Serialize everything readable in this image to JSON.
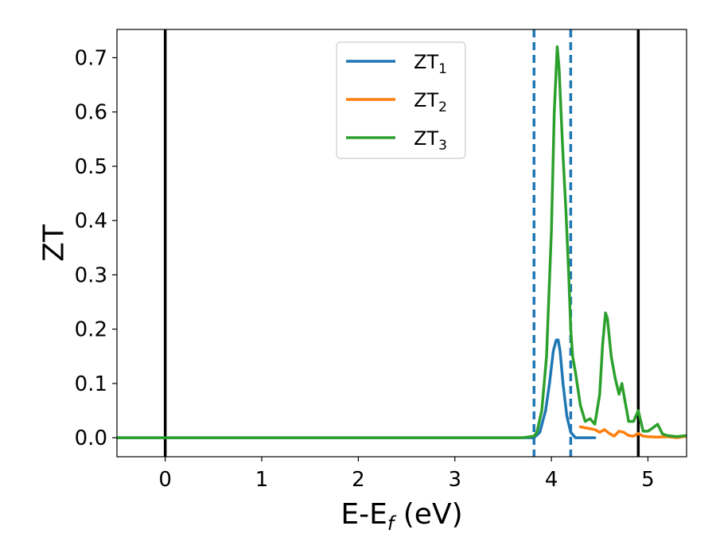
{
  "chart_data": {
    "type": "line",
    "xlabel": "E-E",
    "xlabel_sub": "f",
    "xlabel_unit": " (eV)",
    "ylabel": "ZT",
    "xlim": [
      -0.5,
      5.4
    ],
    "ylim": [
      -0.035,
      0.752
    ],
    "xticks": [
      0,
      1,
      2,
      3,
      4,
      5
    ],
    "xtick_labels": [
      "0",
      "1",
      "2",
      "3",
      "4",
      "5"
    ],
    "yticks": [
      0.0,
      0.1,
      0.2,
      0.3,
      0.4,
      0.5,
      0.6,
      0.7
    ],
    "ytick_labels": [
      "0.0",
      "0.1",
      "0.2",
      "0.3",
      "0.4",
      "0.5",
      "0.6",
      "0.7"
    ],
    "grid": false,
    "legend_position": "top-center",
    "vertical_lines": [
      {
        "x": 0.0,
        "style": "solid",
        "color": "#000000"
      },
      {
        "x": 4.9,
        "style": "solid",
        "color": "#000000"
      },
      {
        "x": 3.82,
        "style": "dashed",
        "color": "#1f77b4"
      },
      {
        "x": 4.2,
        "style": "dashed",
        "color": "#1f77b4"
      }
    ],
    "series": [
      {
        "name": "ZT",
        "subscript": "1",
        "color": "#1f77b4",
        "x": [
          -0.5,
          3.7,
          3.82,
          3.88,
          3.94,
          3.98,
          4.02,
          4.05,
          4.07,
          4.09,
          4.12,
          4.16,
          4.2,
          4.25,
          4.3,
          4.35,
          4.4,
          4.45
        ],
        "y": [
          0,
          0,
          0,
          0.01,
          0.05,
          0.1,
          0.16,
          0.18,
          0.18,
          0.16,
          0.1,
          0.04,
          0.01,
          0,
          0,
          0,
          0,
          0
        ]
      },
      {
        "name": "ZT",
        "subscript": "2",
        "color": "#ff7f0e",
        "x": [
          4.3,
          4.45,
          4.5,
          4.55,
          4.6,
          4.65,
          4.7,
          4.75,
          4.8,
          4.85,
          4.9,
          4.95,
          5.0,
          5.1,
          5.2,
          5.3,
          5.4
        ],
        "y": [
          0.02,
          0.015,
          0.01,
          0.015,
          0.008,
          0.003,
          0.012,
          0.01,
          0.004,
          0.003,
          0.008,
          0.003,
          0.002,
          0.001,
          0.002,
          0.0,
          0.003
        ]
      },
      {
        "name": "ZT",
        "subscript": "3",
        "color": "#2ca02c",
        "x": [
          -0.5,
          3.7,
          3.82,
          3.85,
          3.9,
          3.95,
          4.0,
          4.03,
          4.06,
          4.08,
          4.1,
          4.12,
          4.15,
          4.18,
          4.2,
          4.22,
          4.25,
          4.3,
          4.35,
          4.4,
          4.45,
          4.5,
          4.53,
          4.56,
          4.58,
          4.62,
          4.66,
          4.7,
          4.73,
          4.76,
          4.8,
          4.85,
          4.9,
          4.95,
          5.0,
          5.05,
          5.1,
          5.15,
          5.2,
          5.3,
          5.4
        ],
        "y": [
          0,
          0,
          0.003,
          0.01,
          0.05,
          0.15,
          0.38,
          0.6,
          0.72,
          0.68,
          0.6,
          0.52,
          0.42,
          0.3,
          0.2,
          0.15,
          0.12,
          0.06,
          0.03,
          0.035,
          0.025,
          0.08,
          0.17,
          0.23,
          0.22,
          0.15,
          0.11,
          0.08,
          0.1,
          0.07,
          0.03,
          0.03,
          0.05,
          0.012,
          0.012,
          0.018,
          0.025,
          0.007,
          0.004,
          0.002,
          0.004
        ]
      }
    ]
  }
}
